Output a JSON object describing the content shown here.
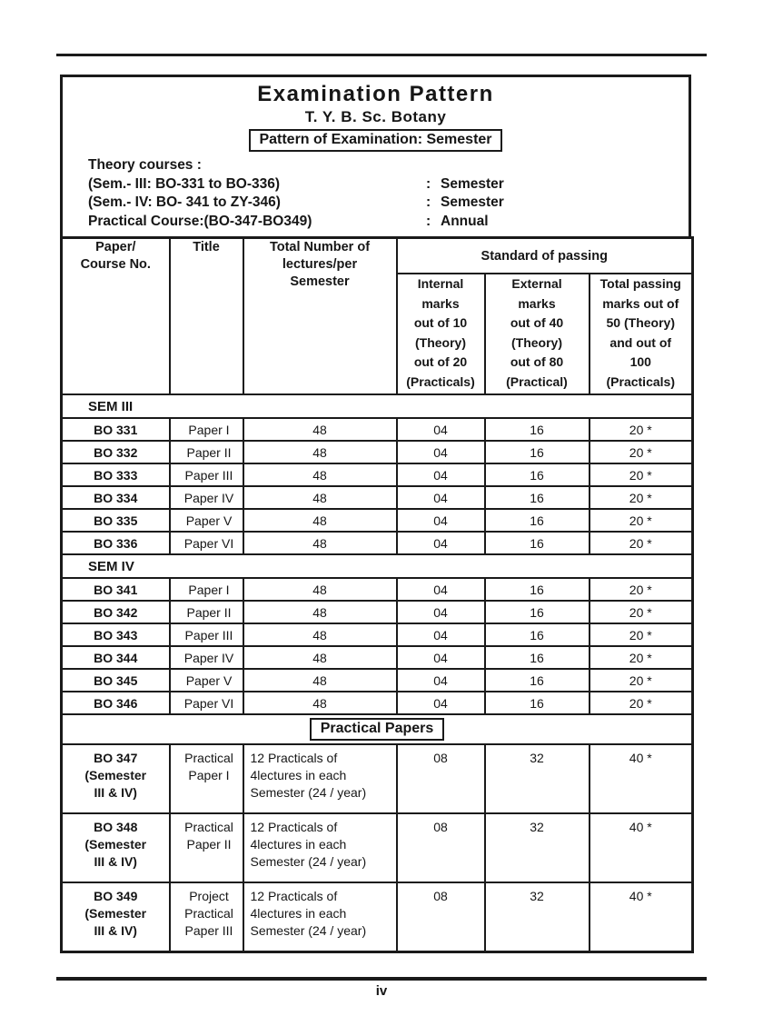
{
  "page": {
    "number": "iv"
  },
  "header": {
    "title": "Examination Pattern",
    "subtitle": "T. Y. B. Sc. Botany",
    "pattern_box": "Pattern of Examination: Semester",
    "theory_heading": "Theory courses :",
    "lines": [
      {
        "label": "(Sem.- III: BO-331 to BO-336)",
        "colon": ":",
        "value": "Semester"
      },
      {
        "label": "(Sem.- IV: BO- 341 to ZY-346)",
        "colon": ":",
        "value": "Semester"
      },
      {
        "label": "Practical Course:(BO-347-BO349)",
        "colon": ":",
        "value": "Annual"
      }
    ]
  },
  "table": {
    "columns": {
      "paper": "Paper/\nCourse No.",
      "title": "Title",
      "lectures": "Total Number of\nlectures/per\nSemester",
      "standard": "Standard of passing",
      "internal": "Internal\nmarks\nout of 10\n(Theory)\nout of 20\n(Practicals)",
      "external": "External\nmarks\nout of 40\n(Theory)\nout of 80\n(Practical)",
      "total": "Total passing\nmarks out of\n50 (Theory)\nand out of\n100\n(Practicals)"
    },
    "sections": [
      {
        "type": "band",
        "label": "SEM III"
      },
      {
        "type": "row",
        "cells": [
          "BO 331",
          "Paper I",
          "48",
          "04",
          "16",
          "20 *"
        ]
      },
      {
        "type": "row",
        "cells": [
          "BO 332",
          "Paper II",
          "48",
          "04",
          "16",
          "20 *"
        ]
      },
      {
        "type": "row",
        "cells": [
          "BO 333",
          "Paper III",
          "48",
          "04",
          "16",
          "20 *"
        ]
      },
      {
        "type": "row",
        "cells": [
          "BO 334",
          "Paper IV",
          "48",
          "04",
          "16",
          "20 *"
        ]
      },
      {
        "type": "row",
        "cells": [
          "BO 335",
          "Paper V",
          "48",
          "04",
          "16",
          "20 *"
        ]
      },
      {
        "type": "row",
        "cells": [
          "BO 336",
          "Paper VI",
          "48",
          "04",
          "16",
          "20 *"
        ]
      },
      {
        "type": "band",
        "label": "SEM IV"
      },
      {
        "type": "row",
        "cells": [
          "BO 341",
          "Paper I",
          "48",
          "04",
          "16",
          "20 *"
        ]
      },
      {
        "type": "row",
        "cells": [
          "BO 342",
          "Paper II",
          "48",
          "04",
          "16",
          "20 *"
        ]
      },
      {
        "type": "row",
        "cells": [
          "BO 343",
          "Paper III",
          "48",
          "04",
          "16",
          "20 *"
        ]
      },
      {
        "type": "row",
        "cells": [
          "BO 344",
          "Paper IV",
          "48",
          "04",
          "16",
          "20 *"
        ]
      },
      {
        "type": "row",
        "cells": [
          "BO 345",
          "Paper V",
          "48",
          "04",
          "16",
          "20 *"
        ]
      },
      {
        "type": "row",
        "cells": [
          "BO 346",
          "Paper VI",
          "48",
          "04",
          "16",
          "20 *"
        ]
      },
      {
        "type": "boxband",
        "label": "Practical Papers"
      },
      {
        "type": "prow",
        "cells": [
          "BO 347\n(Semester\nIII & IV)",
          "Practical\nPaper I",
          "12 Practicals of\n4lectures in each\nSemester (24 / year)",
          "08",
          "32",
          "40 *"
        ]
      },
      {
        "type": "prow",
        "cells": [
          "BO 348\n(Semester\nIII & IV)",
          "Practical\nPaper II",
          "12 Practicals of\n4lectures in each\nSemester (24 / year)",
          "08",
          "32",
          "40 *"
        ]
      },
      {
        "type": "prow",
        "cells": [
          "BO 349\n(Semester\nIII & IV)",
          "Project\nPractical\nPaper III",
          "12 Practicals of\n4lectures in each\nSemester (24 / year)",
          "08",
          "32",
          "40 *"
        ]
      }
    ]
  }
}
